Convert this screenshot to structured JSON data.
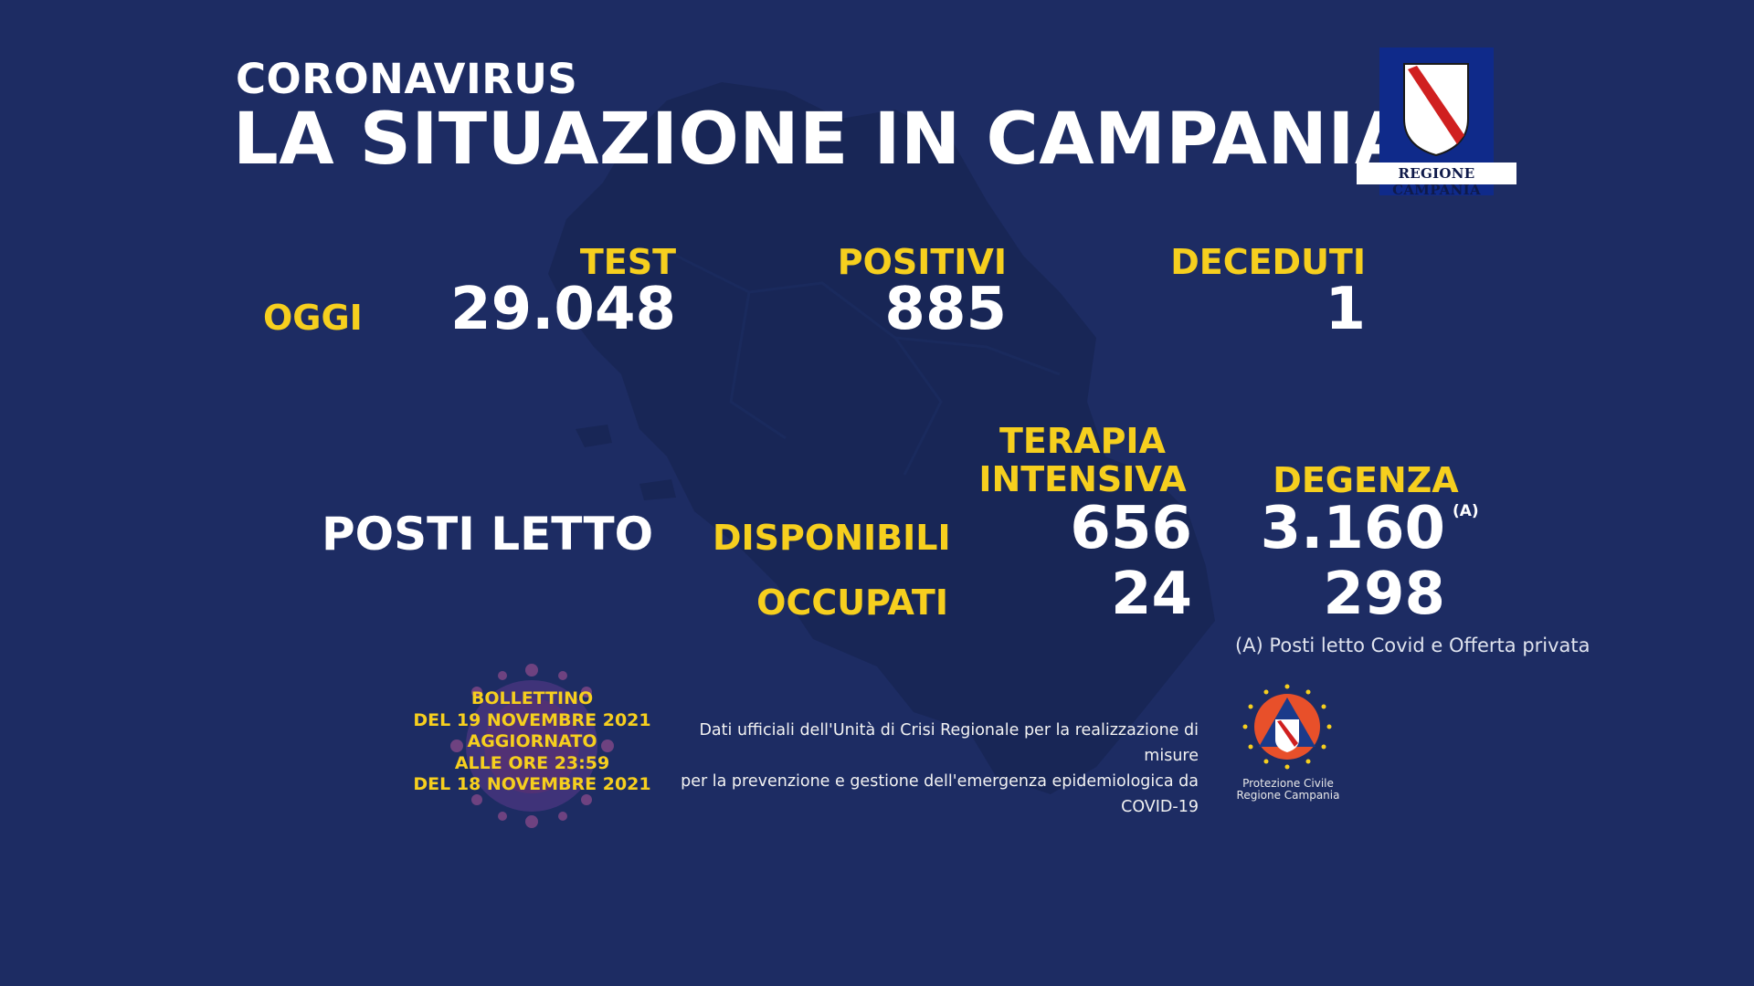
{
  "header": {
    "kicker": "CORONAVIRUS",
    "title": "LA SITUAZIONE IN CAMPANIA",
    "logo_text": "REGIONE CAMPANIA"
  },
  "today": {
    "row_label": "OGGI",
    "test_label": "TEST",
    "test_value": "29.048",
    "positivi_label": "POSITIVI",
    "positivi_value": "885",
    "deceduti_label": "DECEDUTI",
    "deceduti_value": "1"
  },
  "beds": {
    "section_label": "POSTI LETTO",
    "col_ti_line1": "TERAPIA",
    "col_ti_line2": "INTENSIVA",
    "col_degenza": "DEGENZA",
    "row_disponibili": "DISPONIBILI",
    "row_occupati": "OCCUPATI",
    "ti_disponibili": "656",
    "degenza_disponibili": "3.160",
    "degenza_note_marker": "(A)",
    "ti_occupati": "24",
    "degenza_occupati": "298",
    "footnote": "(A) Posti letto Covid e Offerta privata"
  },
  "bulletin": {
    "line1": "BOLLETTINO",
    "line2": "DEL 19 NOVEMBRE 2021",
    "line3": "AGGIORNATO",
    "line4": "ALLE ORE 23:59",
    "line5": "DEL 18 NOVEMBRE 2021"
  },
  "source": {
    "line1": "Dati ufficiali dell'Unità di Crisi Regionale per la realizzazione di misure",
    "line2": "per la prevenzione e gestione dell'emergenza epidemiologica da COVID-19"
  },
  "protezione_civile": {
    "line1": "Protezione Civile",
    "line2": "Regione Campania"
  },
  "colors": {
    "background": "#1d2c63",
    "accent_yellow": "#f6cf1e",
    "text_white": "#ffffff",
    "map_shape": "#182656"
  }
}
